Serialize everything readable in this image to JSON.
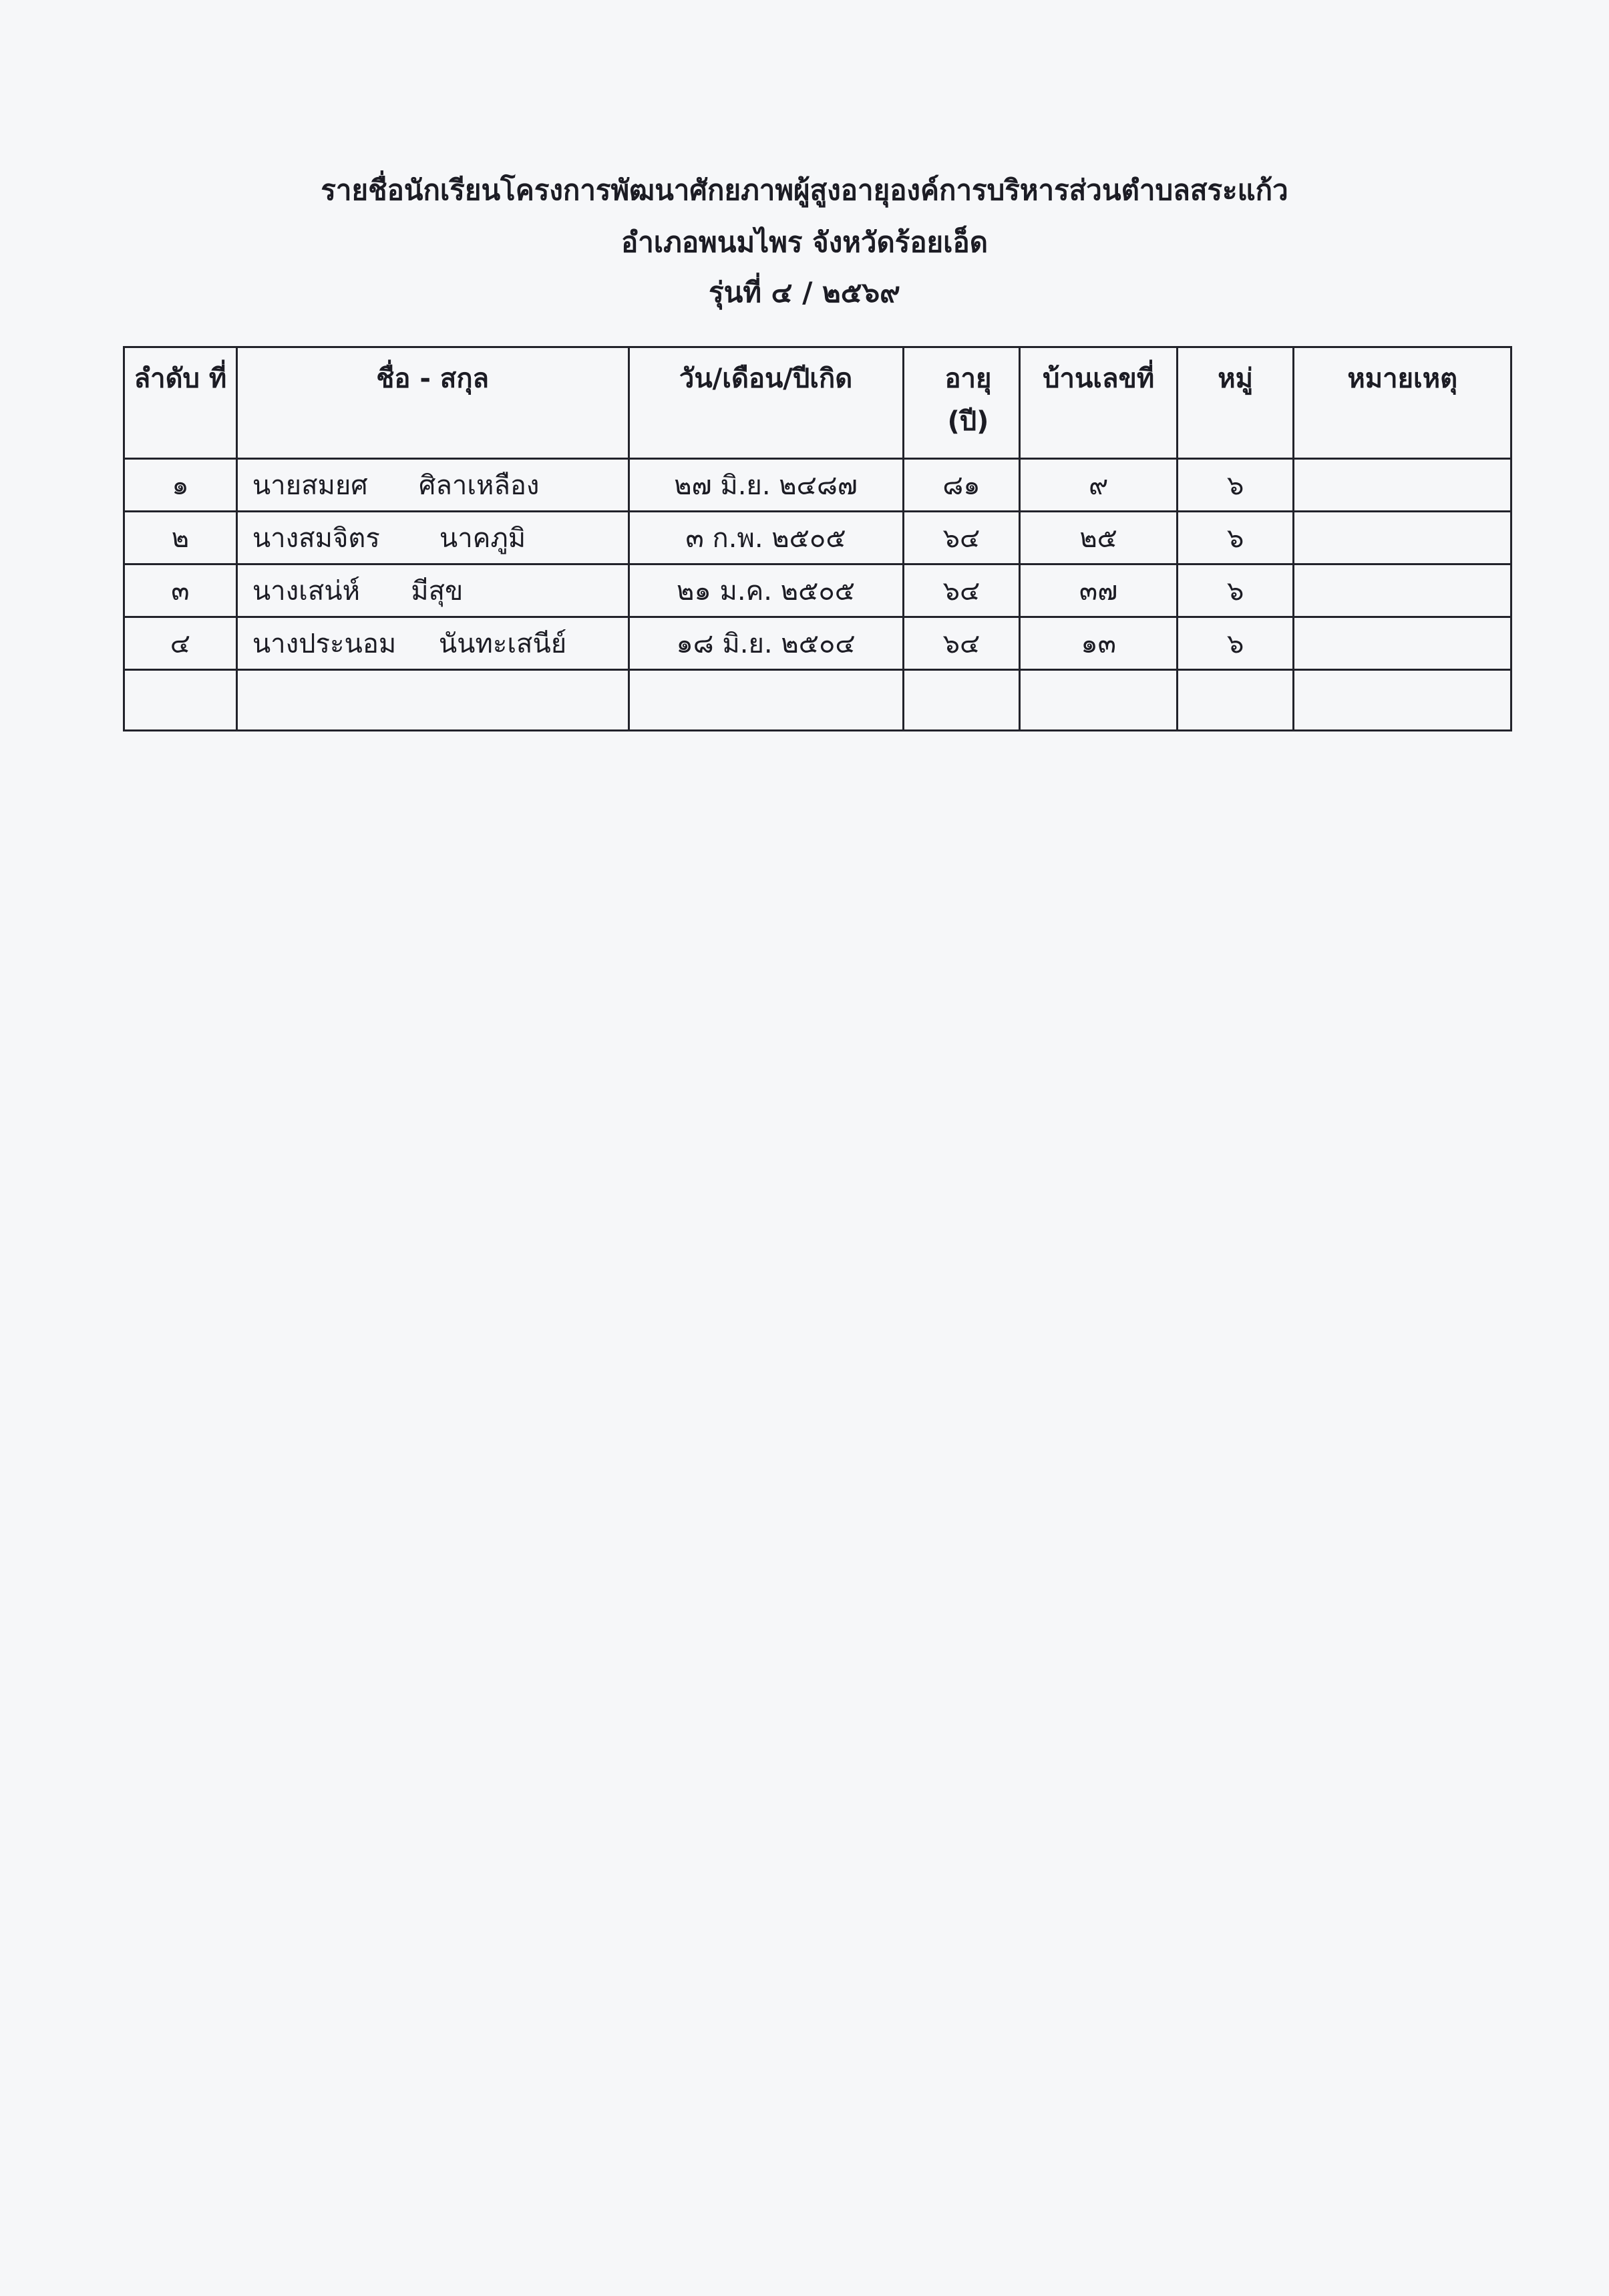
{
  "title": {
    "line1": "รายชื่อนักเรียนโครงการพัฒนาศักยภาพผู้สูงอายุองค์การบริหารส่วนตำบลสระแก้ว",
    "line2": "อำเภอพนมไพร  จังหวัดร้อยเอ็ด",
    "line3": "รุ่นที่ ๔ / ๒๕๖๙"
  },
  "table": {
    "headers": [
      "ลำดับ ที่",
      "ชื่อ - สกุล",
      "วัน/เดือน/ปีเกิด",
      "อายุ (ปี)",
      "บ้านเลขที่",
      "หมู่",
      "หมายเหตุ"
    ],
    "rows": [
      {
        "no": "๑",
        "name": "นายสมยศ      ศิลาเหลือง",
        "dob": "๒๗  มิ.ย. ๒๔๘๗",
        "age": "๘๑",
        "house": "๙",
        "moo": "๖",
        "note": ""
      },
      {
        "no": "๒",
        "name": "นางสมจิตร       นาคภูมิ",
        "dob": "๓ ก.พ.  ๒๕๐๕",
        "age": "๖๔",
        "house": "๒๕",
        "moo": "๖",
        "note": ""
      },
      {
        "no": "๓",
        "name": "นางเสน่ห์      มีสุข",
        "dob": "๒๑ ม.ค. ๒๕๐๕",
        "age": "๖๔",
        "house": "๓๗",
        "moo": "๖",
        "note": ""
      },
      {
        "no": "๔",
        "name": "นางประนอม     นันทะเสนีย์",
        "dob": "๑๘ มิ.ย. ๒๕๐๔",
        "age": "๖๔",
        "house": "๑๓",
        "moo": "๖",
        "note": ""
      }
    ]
  }
}
